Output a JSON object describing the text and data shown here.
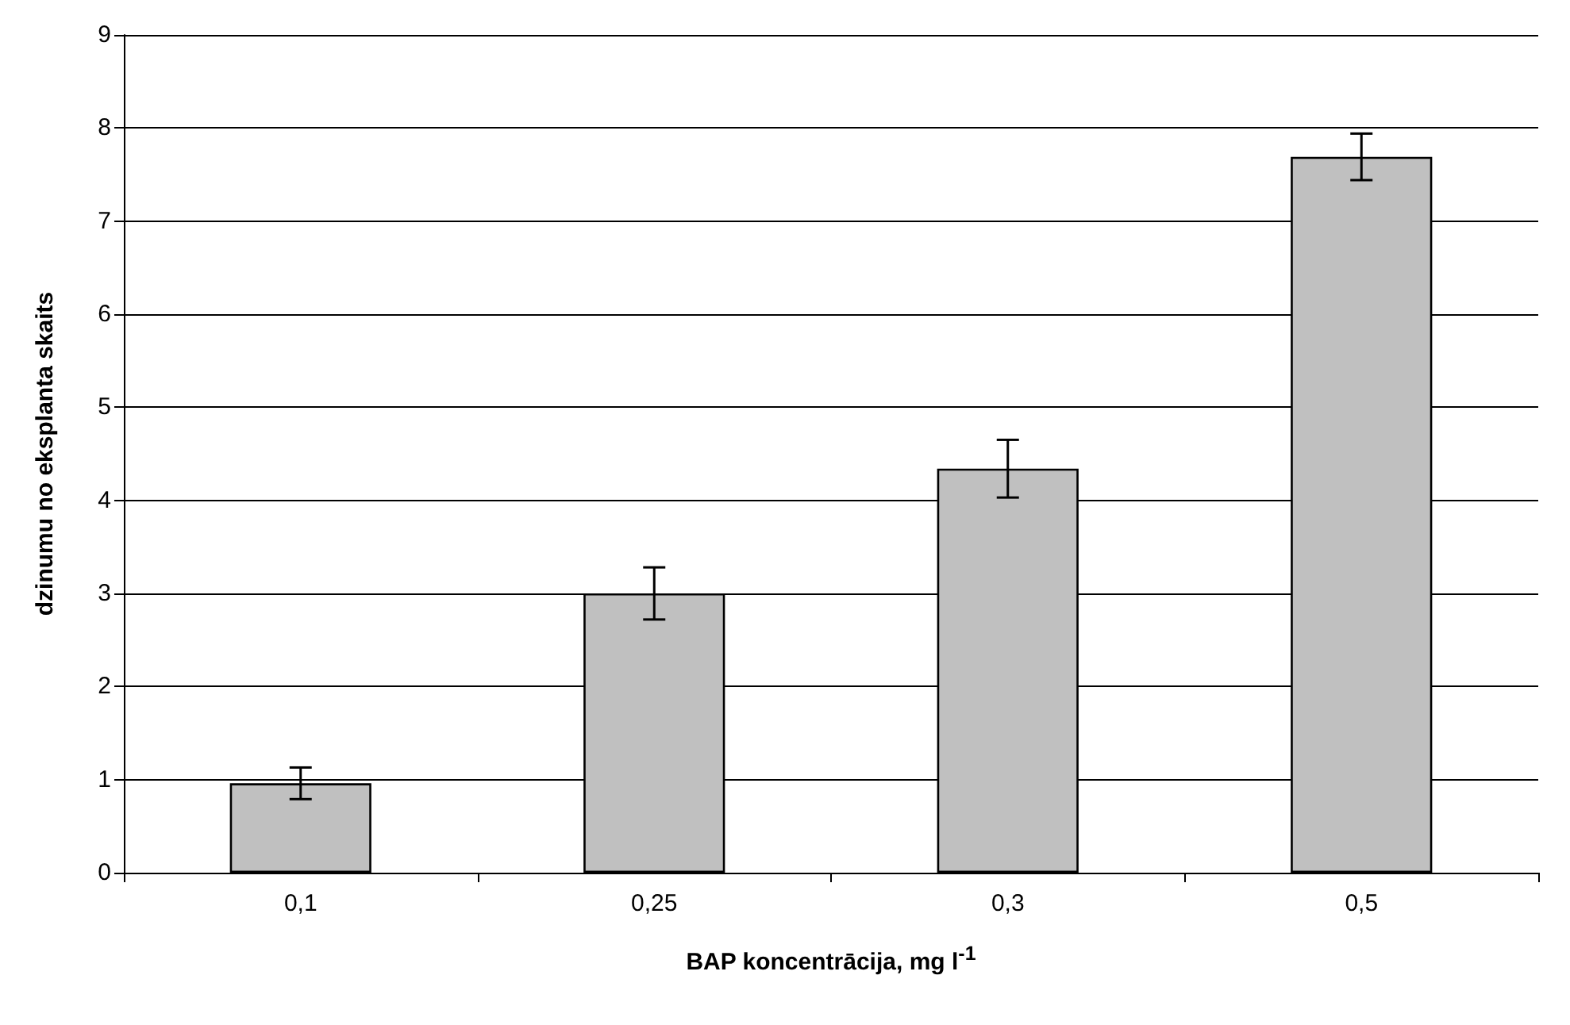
{
  "chart_data": {
    "type": "bar",
    "categories": [
      "0,1",
      "0,25",
      "0,3",
      "0,5"
    ],
    "values": [
      0.96,
      3.0,
      4.34,
      7.69
    ],
    "errors": [
      0.17,
      0.28,
      0.31,
      0.25
    ],
    "color": "#c0c0c0",
    "xlabel": "BAP koncentrācija, mg l$^{-1}$",
    "ylabel": "dzinumu no eksplanta skaits",
    "ylim": [
      0,
      9
    ],
    "yticks": [
      0,
      1,
      2,
      3,
      4,
      5,
      6,
      7,
      8,
      9
    ],
    "grid": "y"
  }
}
